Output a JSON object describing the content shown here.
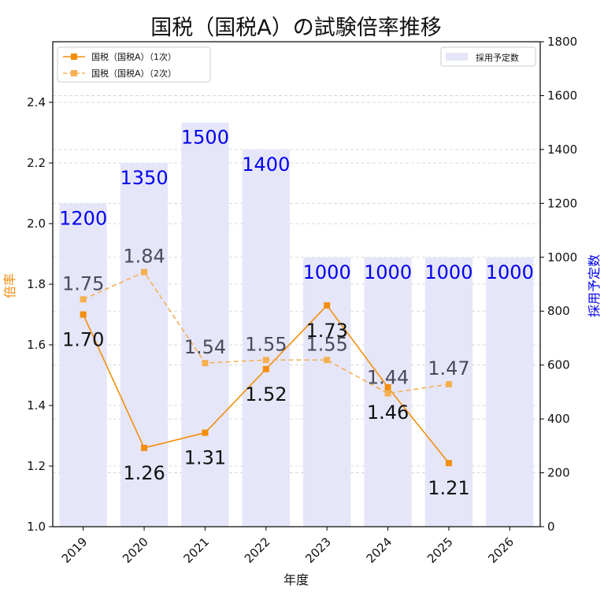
{
  "chart_data": {
    "type": "bar+line",
    "title": "国税（国税A）の試験倍率推移",
    "xlabel": "年度",
    "ylabel_left": "倍率",
    "ylabel_right": "採用予定数",
    "categories": [
      "2019",
      "2020",
      "2021",
      "2022",
      "2023",
      "2024",
      "2025",
      "2026"
    ],
    "ylim_left": [
      1.0,
      2.6
    ],
    "yticks_left": [
      "1.0",
      "1.2",
      "1.4",
      "1.6",
      "1.8",
      "2.0",
      "2.2",
      "2.4"
    ],
    "ylim_right": [
      0,
      1800
    ],
    "yticks_right": [
      "0",
      "200",
      "400",
      "600",
      "800",
      "1000",
      "1200",
      "1400",
      "1600",
      "1800"
    ],
    "grid": true,
    "bars": {
      "name": "採用予定数",
      "values": [
        1200,
        1350,
        1500,
        1400,
        1000,
        1000,
        1000,
        1000
      ],
      "labels": [
        "1200",
        "1350",
        "1500",
        "1400",
        "1000",
        "1000",
        "1000",
        "1000"
      ],
      "color": "#e6e6fa",
      "label_color": "#0000ee"
    },
    "series": [
      {
        "name": "国税（国税A）（1次）",
        "values": [
          1.7,
          1.26,
          1.31,
          1.52,
          1.73,
          1.46,
          1.21,
          null
        ],
        "labels": [
          "1.70",
          "1.26",
          "1.31",
          "1.52",
          "1.73",
          "1.46",
          "1.21",
          ""
        ],
        "color": "#f28e0c",
        "style": "solid"
      },
      {
        "name": "国税（国税A）（2次）",
        "values": [
          1.75,
          1.84,
          1.54,
          1.55,
          1.55,
          1.44,
          1.47,
          null
        ],
        "labels": [
          "1.75",
          "1.84",
          "1.54",
          "1.55",
          "1.55",
          "1.44",
          "1.47",
          ""
        ],
        "color": "#f5b050",
        "label_color": "#4a4a5a",
        "style": "dashed"
      }
    ],
    "legend_lines_position": "top-left",
    "legend_bars_position": "top-right"
  }
}
